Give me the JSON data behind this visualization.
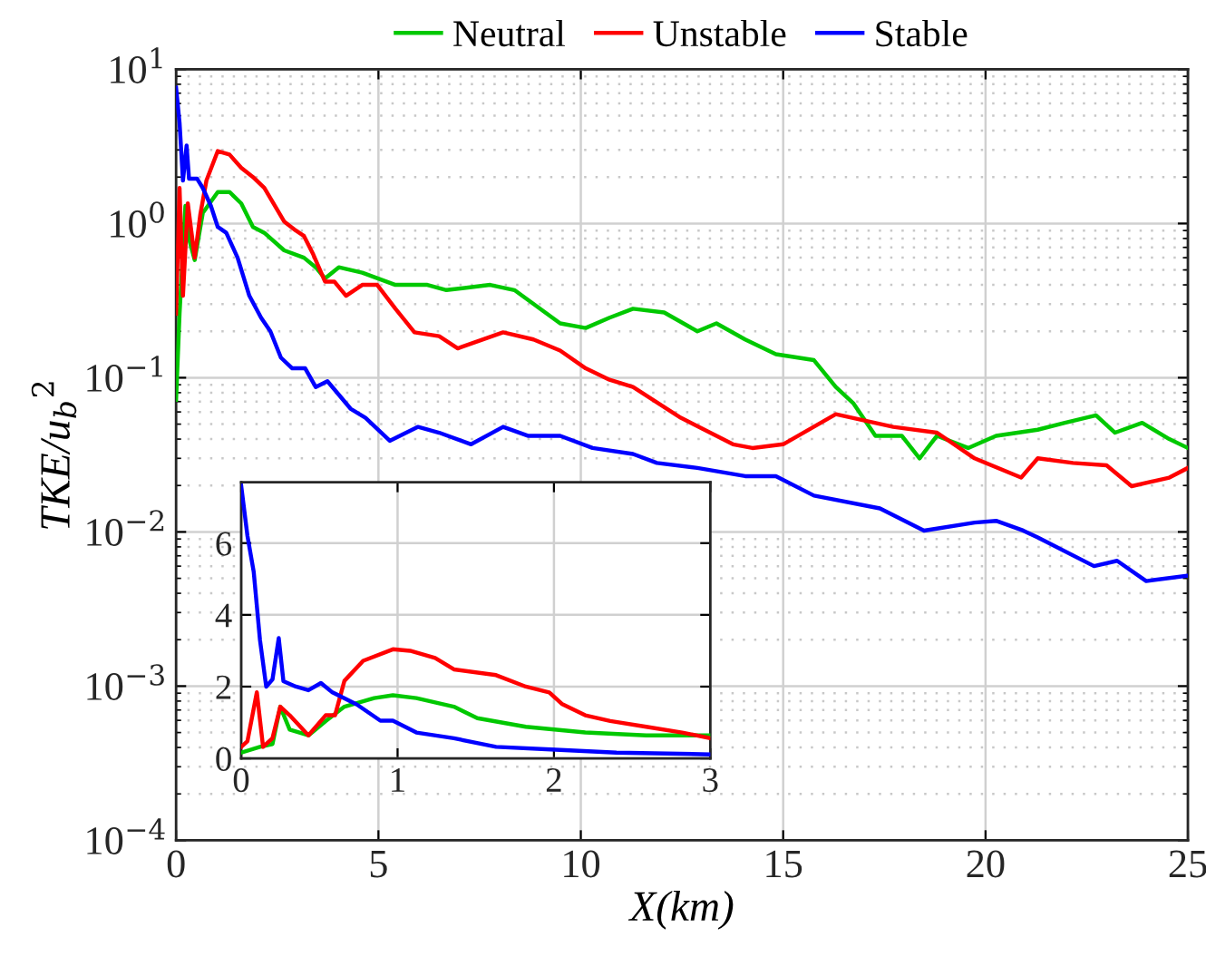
{
  "chart_data": [
    {
      "type": "line",
      "xlabel": "X(km)",
      "ylabel": "TKE/u$_{b}$$^{2}$",
      "log": "y",
      "grid": true,
      "legend": "top",
      "xlim": [
        0,
        25
      ],
      "xticks": [
        0,
        5,
        10,
        15,
        20,
        25
      ],
      "ylim": [
        0.0001,
        10
      ],
      "yticks": [
        {
          "value": 0.0001,
          "label": "10$^{−4}$"
        },
        {
          "value": 0.001,
          "label": "10$^{−3}$"
        },
        {
          "value": 0.01,
          "label": "10$^{−2}$"
        },
        {
          "value": 0.1,
          "label": "10$^{−1}$"
        },
        {
          "value": 1,
          "label": "10$^{0}$"
        },
        {
          "value": 10,
          "label": "10$^{1}$"
        }
      ],
      "series": [
        {
          "name": "Neutral",
          "color": "#00c800",
          "x": [
            0,
            0.086,
            0.23,
            0.34,
            0.46,
            0.66,
            1.03,
            1.32,
            1.61,
            1.9,
            2.18,
            2.67,
            3.16,
            3.45,
            3.68,
            4.02,
            4.6,
            5.42,
            6.21,
            6.68,
            7.76,
            8.36,
            9.49,
            10.12,
            10.71,
            11.29,
            12.06,
            12.88,
            13.35,
            14.06,
            14.82,
            15.76,
            16.3,
            16.74,
            17.28,
            17.93,
            18.37,
            18.8,
            19.57,
            20.26,
            21.29,
            21.96,
            22.73,
            23.2,
            23.87,
            24.54,
            25
          ],
          "values": [
            0.072,
            0.26,
            1.3,
            0.76,
            0.58,
            1.17,
            1.6,
            1.6,
            1.35,
            0.95,
            0.87,
            0.67,
            0.6,
            0.52,
            0.44,
            0.52,
            0.48,
            0.4,
            0.4,
            0.37,
            0.4,
            0.37,
            0.225,
            0.21,
            0.245,
            0.28,
            0.265,
            0.2,
            0.225,
            0.177,
            0.142,
            0.13,
            0.087,
            0.068,
            0.042,
            0.042,
            0.03,
            0.042,
            0.035,
            0.042,
            0.046,
            0.051,
            0.057,
            0.044,
            0.051,
            0.04,
            0.035
          ]
        },
        {
          "name": "Unstable",
          "color": "#ff0000",
          "x": [
            0,
            0.086,
            0.17,
            0.29,
            0.46,
            0.6,
            0.75,
            1.03,
            1.32,
            1.61,
            1.9,
            2.18,
            2.67,
            2.96,
            3.16,
            3.39,
            3.68,
            3.91,
            4.2,
            4.6,
            4.97,
            5.42,
            5.89,
            6.5,
            6.96,
            8.08,
            8.83,
            9.49,
            10.12,
            10.71,
            11.29,
            12.47,
            13.76,
            14.24,
            15.0,
            16.3,
            17.72,
            18.8,
            19.73,
            20.88,
            21.29,
            22.16,
            22.99,
            23.61,
            24.54,
            25
          ],
          "values": [
            0.26,
            1.7,
            0.34,
            1.35,
            0.6,
            1.15,
            1.9,
            2.95,
            2.8,
            2.3,
            2.0,
            1.7,
            1.03,
            0.9,
            0.83,
            0.63,
            0.42,
            0.42,
            0.34,
            0.4,
            0.4,
            0.28,
            0.197,
            0.186,
            0.155,
            0.197,
            0.177,
            0.15,
            0.115,
            0.097,
            0.087,
            0.055,
            0.037,
            0.035,
            0.037,
            0.058,
            0.048,
            0.044,
            0.03,
            0.0225,
            0.03,
            0.028,
            0.027,
            0.0198,
            0.0225,
            0.026
          ]
        },
        {
          "name": "Stable",
          "color": "#0000ff",
          "x": [
            0,
            0.086,
            0.17,
            0.26,
            0.32,
            0.52,
            0.66,
            0.86,
            1.03,
            1.24,
            1.52,
            1.81,
            2.1,
            2.33,
            2.59,
            2.87,
            3.19,
            3.45,
            3.74,
            4.31,
            4.68,
            5.28,
            5.98,
            6.5,
            7.29,
            8.08,
            8.69,
            9.49,
            10.29,
            11.29,
            11.88,
            12.88,
            14.06,
            14.82,
            15.76,
            17.39,
            18.48,
            19.73,
            20.26,
            20.93,
            21.29,
            22.68,
            23.25,
            23.97,
            25
          ],
          "values": [
            7.6,
            4.5,
            1.9,
            3.2,
            1.95,
            1.95,
            1.7,
            1.3,
            0.95,
            0.87,
            0.6,
            0.34,
            0.245,
            0.2,
            0.135,
            0.115,
            0.115,
            0.087,
            0.095,
            0.063,
            0.055,
            0.039,
            0.048,
            0.044,
            0.037,
            0.048,
            0.042,
            0.042,
            0.035,
            0.032,
            0.028,
            0.026,
            0.023,
            0.023,
            0.0172,
            0.0142,
            0.0102,
            0.0115,
            0.0118,
            0.0102,
            0.0092,
            0.006,
            0.0065,
            0.0048,
            0.0052
          ]
        }
      ]
    },
    {
      "type": "line",
      "grid": true,
      "xlim": [
        0,
        3
      ],
      "xticks": [
        0,
        1,
        2,
        3
      ],
      "ylim": [
        0,
        7.7
      ],
      "yticks": [
        0,
        2,
        4,
        6
      ],
      "series": [
        {
          "color": "#00c800",
          "x": [
            0,
            0.12,
            0.2,
            0.25,
            0.31,
            0.43,
            0.54,
            0.66,
            0.85,
            0.97,
            1.12,
            1.36,
            1.51,
            1.82,
            2.2,
            2.59,
            3.0
          ],
          "values": [
            0.16,
            0.32,
            0.4,
            1.44,
            0.8,
            0.64,
            1.04,
            1.44,
            1.68,
            1.76,
            1.68,
            1.44,
            1.12,
            0.88,
            0.72,
            0.64,
            0.64
          ]
        },
        {
          "color": "#ff0000",
          "x": [
            0,
            0.04,
            0.1,
            0.14,
            0.2,
            0.25,
            0.31,
            0.43,
            0.54,
            0.6,
            0.66,
            0.78,
            0.97,
            1.08,
            1.24,
            1.36,
            1.63,
            1.82,
            1.97,
            2.05,
            2.2,
            2.36,
            2.59,
            2.82,
            3.0
          ],
          "values": [
            0.32,
            0.48,
            1.84,
            0.32,
            0.56,
            1.44,
            1.2,
            0.64,
            1.2,
            1.2,
            2.16,
            2.72,
            3.04,
            3.0,
            2.8,
            2.48,
            2.32,
            2.0,
            1.84,
            1.52,
            1.2,
            1.04,
            0.88,
            0.72,
            0.56
          ]
        },
        {
          "color": "#0000ff",
          "x": [
            0,
            0.04,
            0.08,
            0.12,
            0.16,
            0.2,
            0.24,
            0.27,
            0.35,
            0.43,
            0.51,
            0.58,
            0.74,
            0.89,
            0.97,
            1.12,
            1.36,
            1.63,
            2.01,
            2.4,
            3.0
          ],
          "values": [
            7.6,
            6.2,
            5.2,
            3.3,
            2.0,
            2.2,
            3.35,
            2.15,
            2.0,
            1.9,
            2.1,
            1.85,
            1.5,
            1.05,
            1.05,
            0.72,
            0.56,
            0.32,
            0.24,
            0.16,
            0.11
          ]
        }
      ]
    }
  ]
}
